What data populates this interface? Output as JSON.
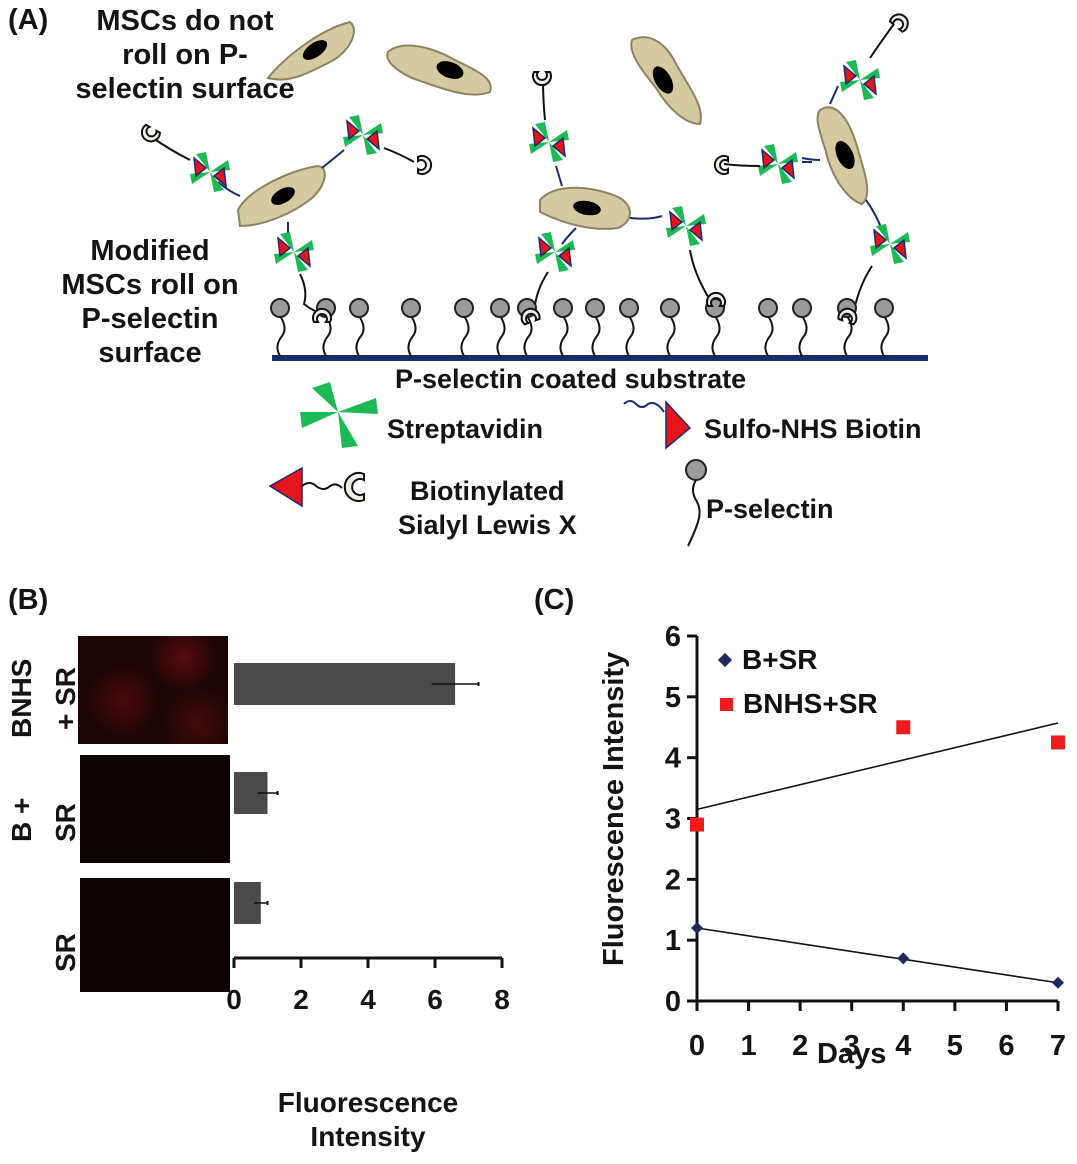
{
  "panel_a": {
    "letter": "(A)",
    "note_top": [
      "MSCs do not",
      "roll on P-",
      "selectin surface"
    ],
    "note_left": [
      "Modified",
      "MSCs roll on",
      "P-selectin",
      "surface"
    ],
    "substrate_label": "P-selectin coated substrate",
    "legend": [
      {
        "icon": "streptavidin-icon",
        "label": "Streptavidin"
      },
      {
        "icon": "sulfo-nhs-biotin-icon",
        "label": "Sulfo-NHS Biotin"
      },
      {
        "icon": "biotinylated-slex-icon",
        "label_lines": [
          "Biotinylated",
          "Sialyl Lewis X"
        ]
      },
      {
        "icon": "p-selectin-icon",
        "label": "P-selectin"
      }
    ],
    "colors": {
      "cell": "#d4c9a0",
      "nucleus": "#000000",
      "streptavidin": "#1db954",
      "biotin": "#e8141c",
      "substrate": "#1a2a6e",
      "selectin": "#9a9a9a"
    }
  },
  "panel_b": {
    "letter": "(B)",
    "row_labels": [
      {
        "line1": "BNHS",
        "line2": "+ SR"
      },
      {
        "line1": "B +",
        "line2": "SR"
      },
      {
        "line1": "SR",
        "line2": ""
      }
    ],
    "xlabel_lines": [
      "Fluorescence",
      "Intensity"
    ],
    "ticks": [
      "0",
      "2",
      "4",
      "6",
      "8"
    ]
  },
  "panel_c": {
    "letter": "(C)",
    "ylabel": "Fluorescence Intensity",
    "xlabel": "Days",
    "yticks": [
      "0",
      "1",
      "2",
      "3",
      "4",
      "5",
      "6"
    ],
    "xticks": [
      "0",
      "1",
      "2",
      "3",
      "4",
      "5",
      "6",
      "7"
    ],
    "legend": [
      {
        "marker": "diamond",
        "label": "B+SR",
        "color": "#1c2a5e"
      },
      {
        "marker": "square",
        "label": "BNHS+SR",
        "color": "#ee1c1c"
      }
    ]
  },
  "chart_data": [
    {
      "type": "bar",
      "orientation": "horizontal",
      "title": "(B)",
      "categories": [
        "BNHS + SR",
        "B + SR",
        "SR"
      ],
      "values": [
        6.6,
        1.0,
        0.8
      ],
      "errors": [
        0.7,
        0.3,
        0.2
      ],
      "xlabel": "Fluorescence Intensity",
      "ylabel": "",
      "xlim": [
        0,
        8
      ],
      "xticks": [
        0,
        2,
        4,
        6,
        8
      ],
      "bar_color": "#4a4a4a",
      "grid": false,
      "annotations": [
        "Fluorescence micrograph beside each bar (red signal visible only for BNHS + SR)"
      ]
    },
    {
      "type": "scatter",
      "title": "(C)",
      "xlabel": "Days",
      "ylabel": "Fluorescence Intensity",
      "xlim": [
        0,
        7
      ],
      "ylim": [
        0,
        6
      ],
      "xticks": [
        0,
        1,
        2,
        3,
        4,
        5,
        6,
        7
      ],
      "yticks": [
        0,
        1,
        2,
        3,
        4,
        5,
        6
      ],
      "grid": false,
      "legend_position": "top-left inside",
      "series": [
        {
          "name": "B+SR",
          "marker": "diamond",
          "color": "#1c2a5e",
          "x": [
            0,
            4,
            7
          ],
          "y": [
            1.2,
            0.7,
            0.3
          ],
          "trendline": {
            "x": [
              0,
              7
            ],
            "y": [
              1.2,
              0.3
            ]
          }
        },
        {
          "name": "BNHS+SR",
          "marker": "square",
          "color": "#ee1c1c",
          "x": [
            0,
            4,
            7
          ],
          "y": [
            2.9,
            4.5,
            4.25
          ],
          "trendline": {
            "x": [
              0,
              7
            ],
            "y": [
              3.15,
              4.57
            ]
          }
        }
      ]
    }
  ]
}
